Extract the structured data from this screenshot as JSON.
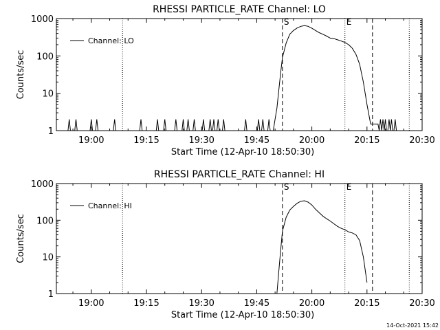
{
  "chart_data": [
    {
      "type": "line",
      "title": "RHESSI PARTICLE_RATE Channel: LO",
      "xlabel": "Start Time (12-Apr-10 18:50:30)",
      "ylabel": "Counts/sec",
      "y_scale": "log",
      "ylim": [
        1,
        1000
      ],
      "xlim": [
        "18:50:30",
        "20:30"
      ],
      "x_ticks": [
        "19:00",
        "19:15",
        "19:30",
        "19:45",
        "20:00",
        "20:15",
        "20:30"
      ],
      "y_ticks": [
        "1",
        "10",
        "100",
        "1000"
      ],
      "legend": {
        "entries": [
          "Channel: LO"
        ],
        "placement": "top-left"
      },
      "markers": [
        {
          "time": "19:52:00",
          "label": "S",
          "style": "dashed"
        },
        {
          "time": "20:16:30",
          "label": "",
          "style": "dashed"
        },
        {
          "time": "19:08:30",
          "label": "",
          "style": "dotted"
        },
        {
          "time": "20:09:00",
          "label": "E",
          "style": "dotted"
        },
        {
          "time": "20:26:30",
          "label": "",
          "style": "dotted"
        }
      ],
      "series": [
        {
          "name": "Channel: LO",
          "x": [
            "18:50:30",
            "18:53:40",
            "18:54:00",
            "18:54:20",
            "18:55:30",
            "18:55:50",
            "18:56:10",
            "18:59:40",
            "19:00:00",
            "19:00:20",
            "19:01:10",
            "19:01:30",
            "19:01:50",
            "19:06:00",
            "19:06:20",
            "19:06:40",
            "19:13:10",
            "19:13:30",
            "19:13:50",
            "19:17:40",
            "19:18:00",
            "19:18:20",
            "19:19:40",
            "19:20:00",
            "19:20:20",
            "19:22:40",
            "19:23:00",
            "19:23:20",
            "19:24:40",
            "19:25:00",
            "19:25:20",
            "19:26:00",
            "19:26:20",
            "19:26:40",
            "19:27:40",
            "19:28:00",
            "19:28:20",
            "19:30:10",
            "19:30:30",
            "19:30:50",
            "19:32:00",
            "19:32:20",
            "19:32:40",
            "19:33:00",
            "19:33:20",
            "19:33:40",
            "19:34:10",
            "19:34:30",
            "19:34:50",
            "19:35:40",
            "19:36:00",
            "19:36:20",
            "19:41:40",
            "19:42:00",
            "19:42:20",
            "19:45:10",
            "19:45:30",
            "19:45:50",
            "19:46:20",
            "19:46:40",
            "19:47:00",
            "19:48:00",
            "19:48:20",
            "19:48:40",
            "19:49:30",
            "19:50:00",
            "19:50:30",
            "19:51:00",
            "19:51:30",
            "19:52:00",
            "19:53:00",
            "19:54:00",
            "19:55:00",
            "19:56:00",
            "19:57:00",
            "19:58:00",
            "19:59:00",
            "20:00:00",
            "20:01:00",
            "20:02:00",
            "20:03:00",
            "20:04:00",
            "20:05:00",
            "20:06:00",
            "20:07:00",
            "20:08:00",
            "20:09:00",
            "20:10:00",
            "20:11:00",
            "20:12:00",
            "20:13:00",
            "20:14:00",
            "20:15:00",
            "20:16:00",
            "20:17:00",
            "20:18:00",
            "20:18:20",
            "20:18:40",
            "20:19:00",
            "20:19:20",
            "20:19:40",
            "20:20:00",
            "20:20:20",
            "20:20:40",
            "20:21:00",
            "20:21:20",
            "20:21:40",
            "20:22:00",
            "20:22:20",
            "20:22:40",
            "20:23:00",
            "20:23:20",
            "20:23:40",
            "20:30:00"
          ],
          "y": [
            1,
            1,
            2,
            1,
            1,
            2,
            1,
            1,
            2,
            1,
            1,
            2,
            1,
            1,
            2,
            1,
            1,
            2,
            1,
            1,
            2,
            1,
            1,
            2,
            1,
            1,
            2,
            1,
            1,
            2,
            1,
            1,
            2,
            1,
            1,
            2,
            1,
            1,
            2,
            1,
            1,
            2,
            1,
            1,
            2,
            1,
            1,
            2,
            1,
            1,
            2,
            1,
            1,
            2,
            1,
            1,
            2,
            1,
            1,
            2,
            1,
            1,
            2,
            1,
            1,
            2,
            4,
            12,
            35,
            90,
            220,
            380,
            480,
            560,
            620,
            650,
            620,
            550,
            480,
            420,
            380,
            340,
            300,
            290,
            270,
            250,
            230,
            200,
            160,
            110,
            60,
            20,
            5,
            1.5,
            1.5,
            1.5,
            1,
            2,
            1,
            2,
            1,
            2,
            1,
            1,
            2,
            1,
            2,
            1,
            1,
            2,
            1,
            1,
            1,
            1
          ]
        }
      ]
    },
    {
      "type": "line",
      "title": "RHESSI PARTICLE_RATE Channel: HI",
      "xlabel": "Start Time (12-Apr-10 18:50:30)",
      "ylabel": "Counts/sec",
      "y_scale": "log",
      "ylim": [
        1,
        1000
      ],
      "xlim": [
        "18:50:30",
        "20:30"
      ],
      "x_ticks": [
        "19:00",
        "19:15",
        "19:30",
        "19:45",
        "20:00",
        "20:15",
        "20:30"
      ],
      "y_ticks": [
        "1",
        "10",
        "100",
        "1000"
      ],
      "legend": {
        "entries": [
          "Channel: HI"
        ],
        "placement": "top-left"
      },
      "markers": [
        {
          "time": "19:52:00",
          "label": "S",
          "style": "dashed"
        },
        {
          "time": "20:16:30",
          "label": "",
          "style": "dashed"
        },
        {
          "time": "19:08:30",
          "label": "",
          "style": "dotted"
        },
        {
          "time": "20:09:00",
          "label": "E",
          "style": "dotted"
        },
        {
          "time": "20:26:30",
          "label": "",
          "style": "dotted"
        }
      ],
      "series": [
        {
          "name": "Channel: HI",
          "x": [
            "19:50:30",
            "19:51:00",
            "19:51:30",
            "19:52:00",
            "19:53:00",
            "19:54:00",
            "19:55:00",
            "19:56:00",
            "19:57:00",
            "19:58:00",
            "19:59:00",
            "20:00:00",
            "20:01:00",
            "20:02:00",
            "20:03:00",
            "20:04:00",
            "20:05:00",
            "20:06:00",
            "20:07:00",
            "20:08:00",
            "20:09:00",
            "20:10:00",
            "20:11:00",
            "20:12:00",
            "20:13:00",
            "20:14:00",
            "20:15:00"
          ],
          "y": [
            1,
            4,
            15,
            50,
            120,
            190,
            240,
            290,
            330,
            340,
            310,
            260,
            200,
            160,
            130,
            110,
            95,
            80,
            68,
            60,
            55,
            48,
            45,
            40,
            28,
            10,
            2
          ]
        }
      ]
    }
  ],
  "stamp": "14-Oct-2021 15:42"
}
